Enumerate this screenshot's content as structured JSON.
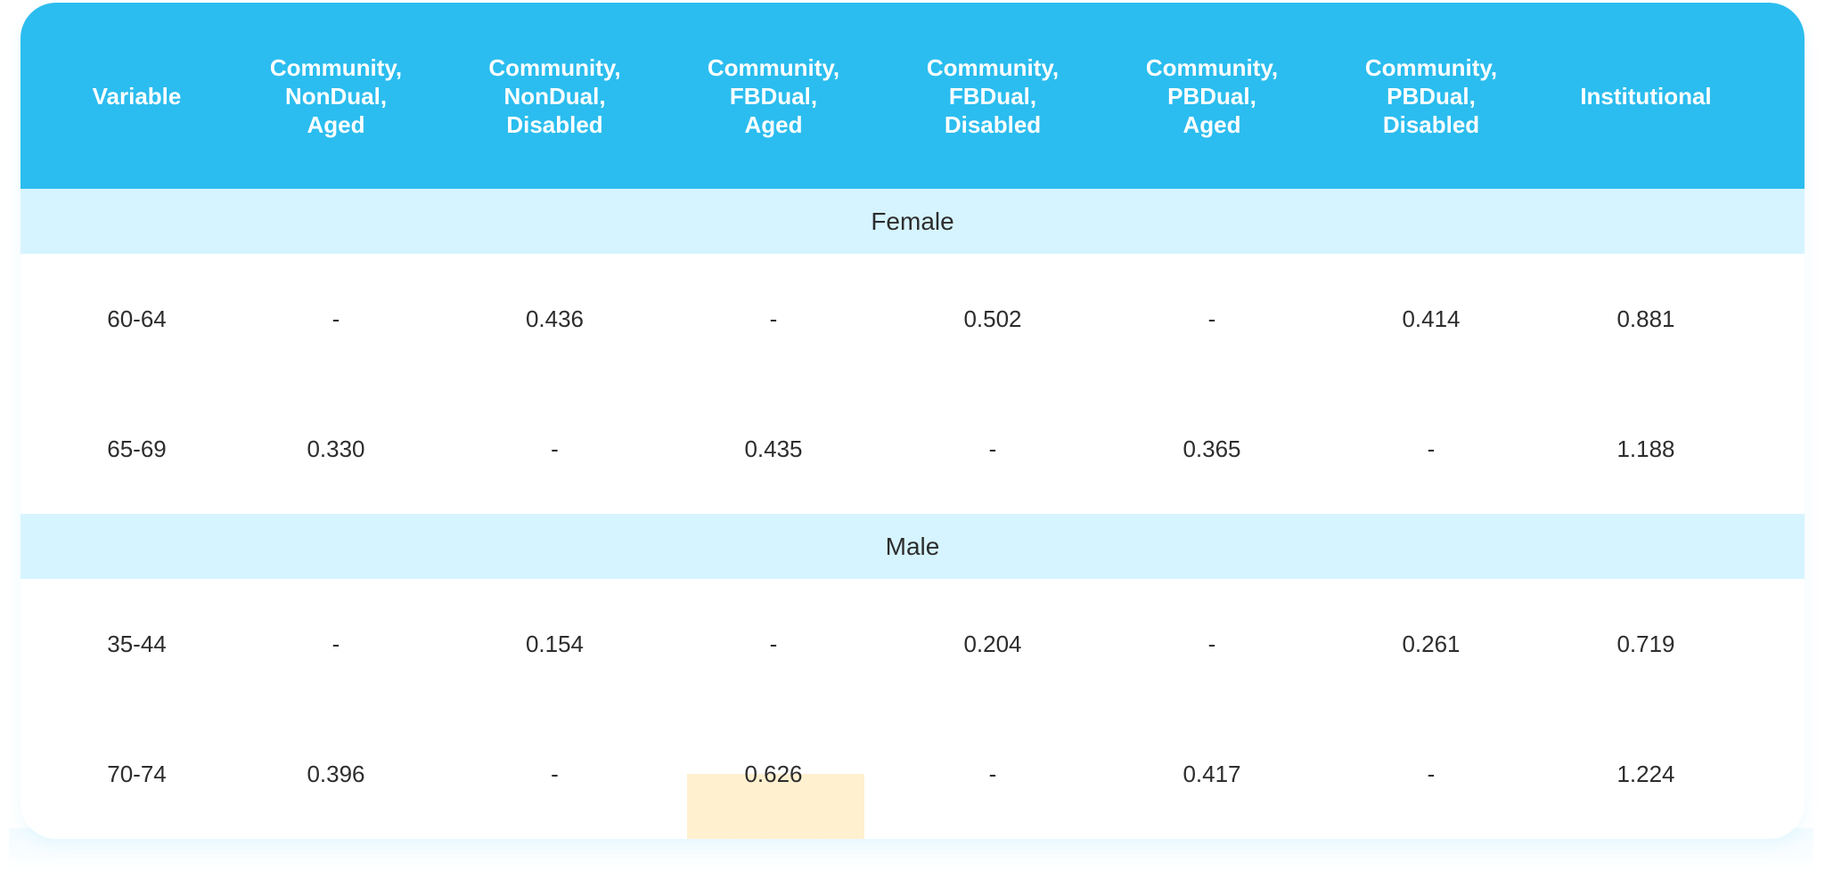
{
  "colors": {
    "header_bg": "#2bbdef",
    "group_bg": "#d6f4ff",
    "highlight_bg": "#fff0cf"
  },
  "columns": [
    [
      "Variable"
    ],
    [
      "Community,",
      "NonDual,",
      "Aged"
    ],
    [
      "Community,",
      "NonDual,",
      "Disabled"
    ],
    [
      "Community,",
      "FBDual,",
      "Aged"
    ],
    [
      "Community,",
      "FBDual,",
      "Disabled"
    ],
    [
      "Community,",
      "PBDual,",
      "Aged"
    ],
    [
      "Community,",
      "PBDual,",
      "Disabled"
    ],
    [
      "Institutional"
    ]
  ],
  "groups": [
    {
      "label": "Female",
      "rows": [
        [
          "60-64",
          "-",
          "0.436",
          "-",
          "0.502",
          "-",
          "0.414",
          "0.881"
        ],
        [
          "65-69",
          "0.330",
          "-",
          "0.435",
          "-",
          "0.365",
          "-",
          "1.188"
        ]
      ]
    },
    {
      "label": "Male",
      "rows": [
        [
          "35-44",
          "-",
          "0.154",
          "-",
          "0.204",
          "-",
          "0.261",
          "0.719"
        ],
        [
          "70-74",
          "0.396",
          "-",
          "0.626",
          "-",
          "0.417",
          "-",
          "1.224"
        ]
      ]
    }
  ],
  "highlighted_cell": {
    "group": 1,
    "row": 1,
    "column": 3
  }
}
